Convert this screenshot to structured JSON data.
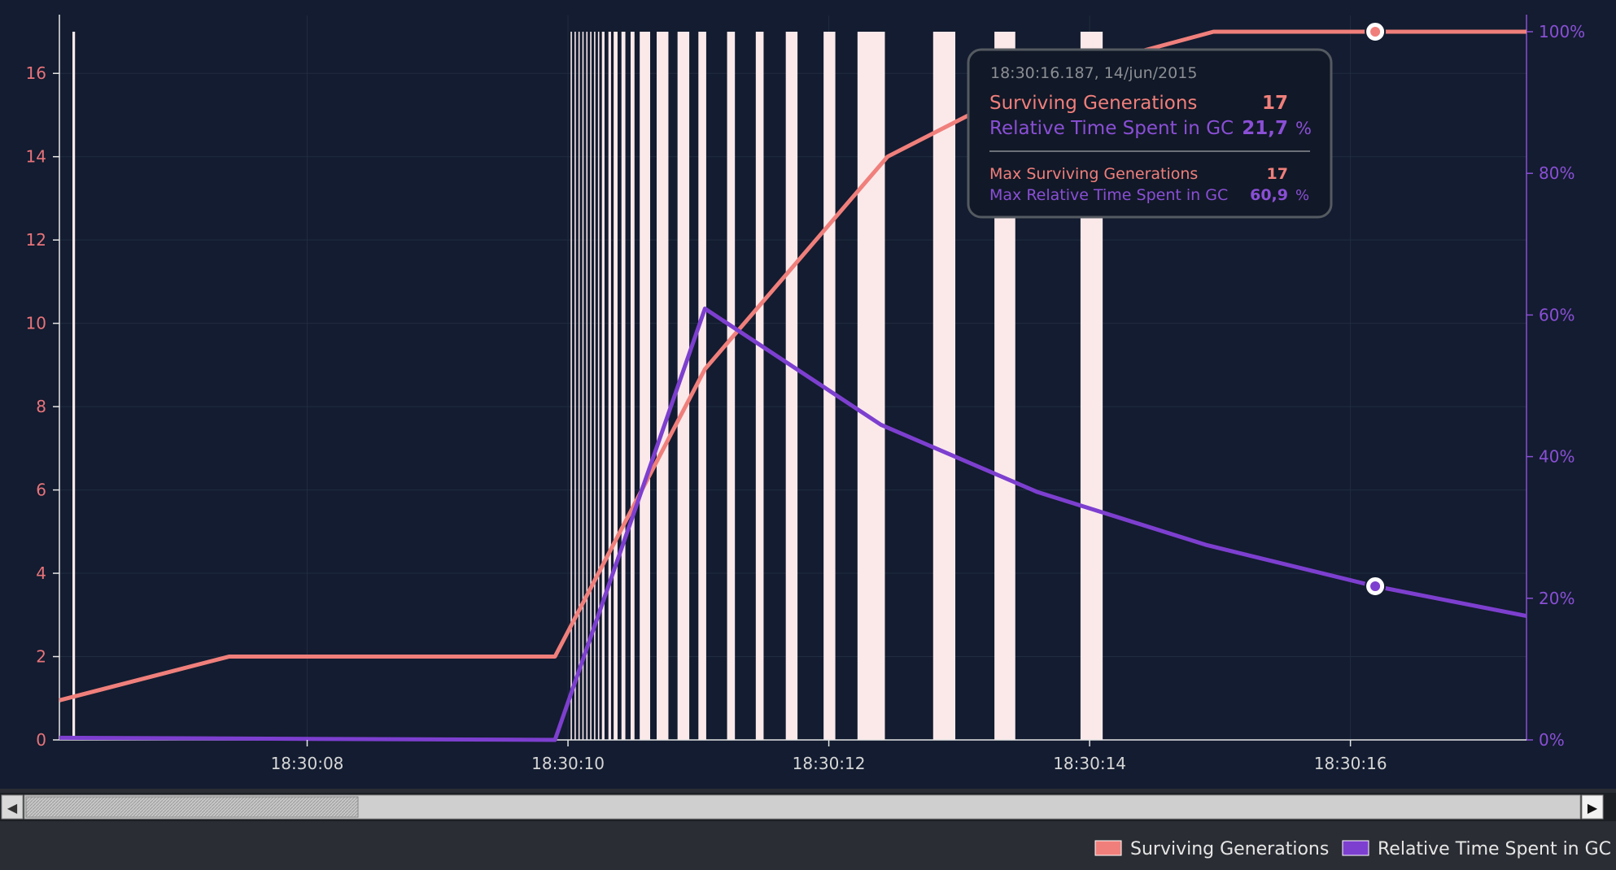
{
  "colors": {
    "background": "#131c30",
    "surviving": "#f07f7b",
    "gc": "#7d3fcf",
    "gc_bar": "#fbe9ea",
    "tooltip_bg": "#111827",
    "tooltip_border": "#555a61",
    "statusbar": "#2a2d33"
  },
  "tooltip": {
    "timestamp": "18:30:16.187, 14/jun/2015",
    "rows": [
      {
        "label": "Surviving Generations",
        "value": "17",
        "unit": ""
      },
      {
        "label": "Relative Time Spent in GC",
        "value": "21,7",
        "unit": "%"
      }
    ],
    "max_rows": [
      {
        "label": "Max Surviving Generations",
        "value": "17",
        "unit": ""
      },
      {
        "label": "Max Relative Time Spent in GC",
        "value": "60,9",
        "unit": "%"
      }
    ]
  },
  "legend": {
    "items": [
      {
        "label": "Surviving Generations",
        "color": "#f07f7b"
      },
      {
        "label": "Relative Time Spent in GC",
        "color": "#7d3fcf"
      }
    ]
  },
  "scrollbar": {
    "left_arrow": "◀",
    "right_arrow": "▶"
  },
  "chart_data": {
    "type": "line",
    "x_domain": [
      "18:30:06.1",
      "18:30:17.35"
    ],
    "x_ticks": [
      "18:30:08",
      "18:30:10",
      "18:30:12",
      "18:30:14",
      "18:30:16"
    ],
    "y_left": {
      "range": [
        0,
        17
      ],
      "ticks": [
        0,
        2,
        4,
        6,
        8,
        10,
        12,
        14,
        16
      ]
    },
    "y_right": {
      "range": [
        0,
        1
      ],
      "ticks": [
        0,
        0.2,
        0.4,
        0.6,
        0.8,
        1.0
      ],
      "tick_labels": [
        "0%",
        "20%",
        "40%",
        "60%",
        "80%",
        "100%"
      ]
    },
    "grid": true,
    "legend_position": "bottom-right",
    "series": [
      {
        "name": "Surviving Generations",
        "axis": "left",
        "x": [
          "18:30:06.1",
          "18:30:07.4",
          "18:30:09.9",
          "18:30:11.05",
          "18:30:12.45",
          "18:30:13.2",
          "18:30:14.0",
          "18:30:14.95",
          "18:30:16.19",
          "18:30:17.35"
        ],
        "y": [
          0.95,
          2,
          2,
          8.9,
          14.0,
          15.2,
          16.2,
          17,
          17,
          17
        ]
      },
      {
        "name": "Relative Time Spent in GC",
        "axis": "right",
        "x": [
          "18:30:06.1",
          "18:30:09.9",
          "18:30:11.05",
          "18:30:12.4",
          "18:30:13.6",
          "18:30:14.9",
          "18:30:16.19",
          "18:30:17.35"
        ],
        "y": [
          0.003,
          0.0,
          0.609,
          0.445,
          0.35,
          0.275,
          0.217,
          0.175
        ]
      }
    ],
    "highlight": {
      "x": "18:30:16.19",
      "surviving": 17,
      "gc": 0.217
    },
    "gc_events": [
      [
        "18:30:06.2",
        "18:30:06.22"
      ],
      [
        "18:30:10.02",
        "18:30:10.03"
      ],
      [
        "18:30:10.05",
        "18:30:10.06"
      ],
      [
        "18:30:10.08",
        "18:30:10.09"
      ],
      [
        "18:30:10.11",
        "18:30:10.12"
      ],
      [
        "18:30:10.14",
        "18:30:10.15"
      ],
      [
        "18:30:10.17",
        "18:30:10.18"
      ],
      [
        "18:30:10.2",
        "18:30:10.21"
      ],
      [
        "18:30:10.23",
        "18:30:10.24"
      ],
      [
        "18:30:10.26",
        "18:30:10.28"
      ],
      [
        "18:30:10.31",
        "18:30:10.33"
      ],
      [
        "18:30:10.35",
        "18:30:10.38"
      ],
      [
        "18:30:10.41",
        "18:30:10.44"
      ],
      [
        "18:30:10.48",
        "18:30:10.51"
      ],
      [
        "18:30:10.55",
        "18:30:10.63"
      ],
      [
        "18:30:10.68",
        "18:30:10.77"
      ],
      [
        "18:30:10.84",
        "18:30:10.93"
      ],
      [
        "18:30:11.0",
        "18:30:11.06"
      ],
      [
        "18:30:11.22",
        "18:30:11.28"
      ],
      [
        "18:30:11.44",
        "18:30:11.5"
      ],
      [
        "18:30:11.67",
        "18:30:11.76"
      ],
      [
        "18:30:11.96",
        "18:30:12.05"
      ],
      [
        "18:30:12.22",
        "18:30:12.43"
      ],
      [
        "18:30:12.8",
        "18:30:12.97"
      ],
      [
        "18:30:13.27",
        "18:30:13.43"
      ],
      [
        "18:30:13.93",
        "18:30:14.1"
      ]
    ]
  }
}
